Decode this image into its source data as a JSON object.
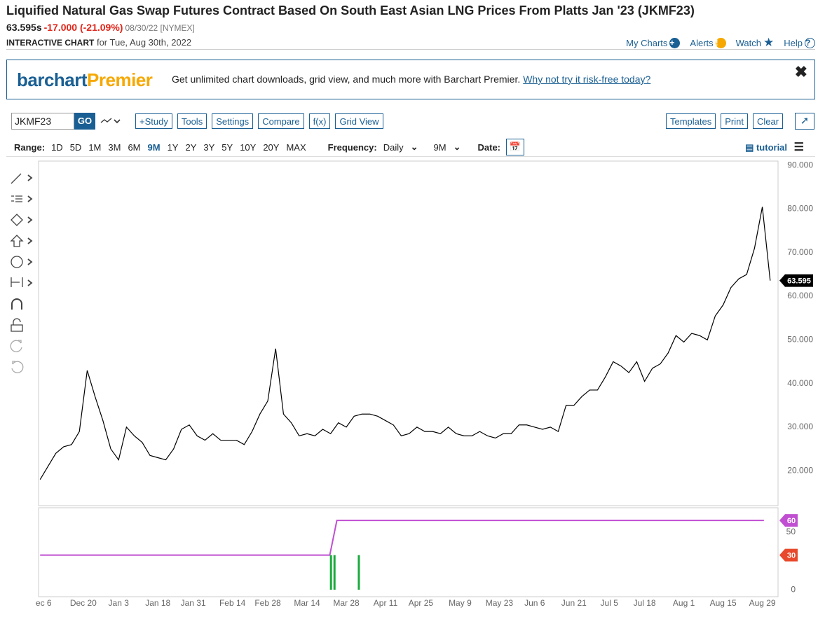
{
  "header": {
    "title": "Liquified Natural Gas Swap Futures Contract Based On South East Asian LNG Prices From Platts Jan '23 (JKMF23)",
    "last": "63.595s",
    "change": "-17.000 (-21.09%)",
    "date_exchange": "08/30/22 [NYMEX]",
    "subtitle_bold": "INTERACTIVE CHART",
    "subtitle": "for Tue, Aug 30th, 2022"
  },
  "nav": [
    "My Charts",
    "Alerts",
    "Watch",
    "Help"
  ],
  "banner": {
    "logo_a": "barchart",
    "logo_b": "Premier",
    "text": "Get unlimited chart downloads, grid view, and much more with Barchart Premier.",
    "link": "Why not try it risk-free today?"
  },
  "toolbar": {
    "symbol": "JKMF23",
    "go": "GO",
    "buttons": [
      "+Study",
      "Tools",
      "Settings",
      "Compare",
      "f(x)",
      "Grid View"
    ],
    "right_buttons": [
      "Templates",
      "Print",
      "Clear"
    ]
  },
  "range": {
    "label": "Range:",
    "options": [
      "1D",
      "5D",
      "1M",
      "3M",
      "6M",
      "9M",
      "1Y",
      "2Y",
      "3Y",
      "5Y",
      "10Y",
      "20Y",
      "MAX"
    ],
    "active_index": 5,
    "frequency_label": "Frequency:",
    "frequency": "Daily",
    "period": "9M",
    "date_label": "Date:",
    "tutorial": "tutorial"
  },
  "chart_data": [
    {
      "type": "line",
      "color": "#000000",
      "grid": true,
      "values": [
        18,
        21,
        24,
        25.5,
        26,
        29,
        43,
        37,
        31.5,
        25,
        22.5,
        30,
        28,
        26.5,
        23.5,
        23,
        22.5,
        25,
        29.5,
        30.5,
        28,
        27,
        28.5,
        27,
        27,
        27,
        26,
        29,
        33,
        36,
        48,
        33,
        31,
        28,
        28.5,
        28,
        29.5,
        28.5,
        31,
        30,
        32.5,
        33,
        33,
        32.5,
        31.5,
        30.5,
        28,
        28.5,
        30,
        29,
        29,
        28.5,
        30,
        28.5,
        28,
        28,
        29,
        28,
        27.5,
        28.5,
        28.5,
        30.5,
        30.5,
        30,
        29.5,
        30,
        29,
        35,
        35,
        37,
        38.5,
        38.5,
        41.5,
        45,
        44,
        42.5,
        45,
        40.5,
        43.5,
        44.5,
        47,
        51,
        49.5,
        51.5,
        51,
        50,
        55.5,
        58,
        62,
        64,
        65,
        71,
        80.5,
        63.595
      ],
      "xlim": [
        -0.2,
        94
      ],
      "xticks": [
        {
          "value": 0.45,
          "label": "ec 6"
        },
        {
          "value": 5.5,
          "label": "Dec 20"
        },
        {
          "value": 10,
          "label": "Jan 3"
        },
        {
          "value": 15,
          "label": "Jan 18"
        },
        {
          "value": 19.5,
          "label": "Jan 31"
        },
        {
          "value": 24.5,
          "label": "Feb 14"
        },
        {
          "value": 29,
          "label": "Feb 28"
        },
        {
          "value": 34,
          "label": "Mar 14"
        },
        {
          "value": 39,
          "label": "Mar 28"
        },
        {
          "value": 44,
          "label": "Apr 11"
        },
        {
          "value": 48.5,
          "label": "Apr 25"
        },
        {
          "value": 53.5,
          "label": "May 9"
        },
        {
          "value": 58.5,
          "label": "May 23"
        },
        {
          "value": 63,
          "label": "Jun 6"
        },
        {
          "value": 68,
          "label": "Jun 21"
        },
        {
          "value": 72.5,
          "label": "Jul 5"
        },
        {
          "value": 77,
          "label": "Jul 18"
        },
        {
          "value": 82,
          "label": "Aug 1"
        },
        {
          "value": 87,
          "label": "Aug 15"
        },
        {
          "value": 92,
          "label": "Aug 29"
        }
      ],
      "ylim": [
        12,
        91
      ],
      "yticks": [
        {
          "value": 20,
          "label": "20.000"
        },
        {
          "value": 30,
          "label": "30.000"
        },
        {
          "value": 40,
          "label": "40.000"
        },
        {
          "value": 50,
          "label": "50.000"
        },
        {
          "value": 60,
          "label": "60.000"
        },
        {
          "value": 70,
          "label": "70.000"
        },
        {
          "value": 80,
          "label": "80.000"
        },
        {
          "value": 90,
          "label": "90.000"
        }
      ]
    },
    {
      "type": "combo",
      "grid": true,
      "xlim": [
        -0.2,
        94
      ],
      "ylim": [
        -6,
        71
      ],
      "yticks": [
        0,
        50
      ],
      "series": [
        {
          "kind": "line",
          "color": "#c04fd1",
          "x": [
            0,
            36.9,
            37.8,
            92.2
          ],
          "values": [
            30,
            30,
            60,
            60
          ]
        },
        {
          "kind": "bar",
          "color": "#1aaa3c",
          "x": [
            37.05,
            37.5,
            40.6
          ],
          "values": [
            30,
            30,
            30
          ]
        }
      ]
    }
  ]
}
